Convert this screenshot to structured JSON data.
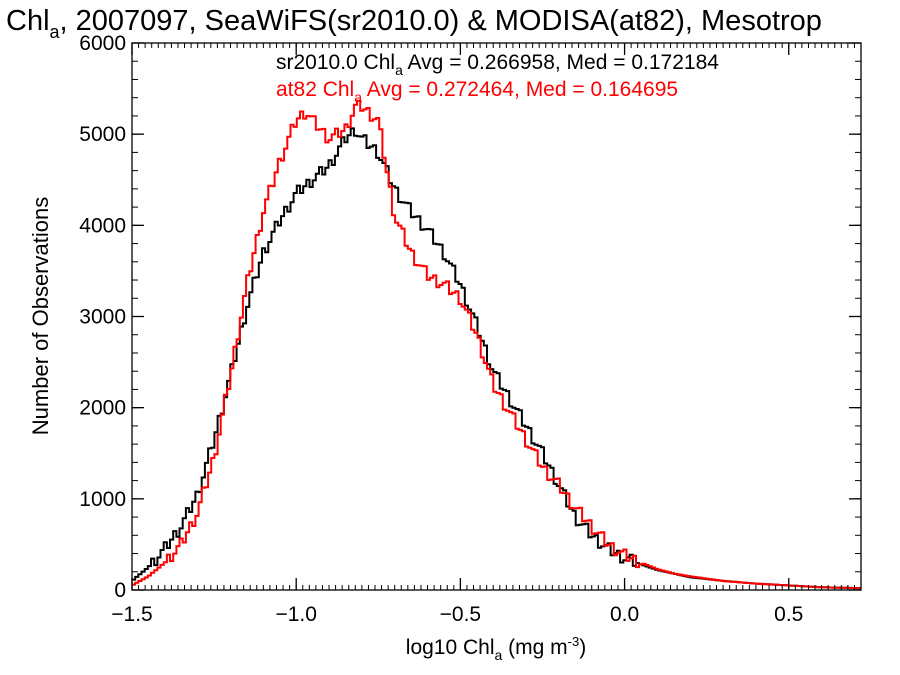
{
  "chart_data": {
    "type": "line",
    "title": {
      "main": "Chl",
      "sub": "a",
      "rest": ", 2007097, SeaWiFS(sr2010.0) & MODISA(at82), Mesotrop"
    },
    "xlabel": {
      "pre": "log10 Chl",
      "sub": "a",
      "mid": " (mg m",
      "sup": "-3",
      "post": ")"
    },
    "ylabel": "Number of Observations",
    "xlim": [
      -1.5,
      0.72
    ],
    "ylim": [
      0,
      6000
    ],
    "x_ticks": [
      -1.5,
      -1.0,
      -0.5,
      0.0,
      0.5
    ],
    "x_tick_labels": [
      "−1.5",
      "−1.0",
      "−0.5",
      "0.0",
      "0.5"
    ],
    "y_ticks": [
      0,
      1000,
      2000,
      3000,
      4000,
      5000,
      6000
    ],
    "y_tick_labels": [
      "0",
      "1000",
      "2000",
      "3000",
      "4000",
      "5000",
      "6000"
    ],
    "annotations": [
      {
        "pre": "sr2010.0 Chl",
        "sub": "a",
        "post": " Avg = 0.266958, Med = 0.172184",
        "color": "#000000"
      },
      {
        "pre": "at82 Chl",
        "sub": "a",
        "post": " Avg = 0.272464, Med = 0.164695",
        "color": "#ff0000"
      }
    ],
    "series": [
      {
        "name": "sr2010.0",
        "color": "#000000",
        "x": [
          -1.5,
          -1.45,
          -1.4,
          -1.35,
          -1.3,
          -1.25,
          -1.2,
          -1.15,
          -1.1,
          -1.05,
          -1.0,
          -0.95,
          -0.9,
          -0.85,
          -0.82,
          -0.8,
          -0.75,
          -0.7,
          -0.65,
          -0.6,
          -0.55,
          -0.5,
          -0.45,
          -0.4,
          -0.35,
          -0.3,
          -0.25,
          -0.2,
          -0.15,
          -0.1,
          -0.05,
          0.0,
          0.05,
          0.1,
          0.15,
          0.2,
          0.3,
          0.4,
          0.5,
          0.6,
          0.72
        ],
        "y": [
          100,
          250,
          450,
          700,
          1050,
          1650,
          2350,
          3100,
          3700,
          4050,
          4350,
          4500,
          4650,
          4950,
          5050,
          4950,
          4800,
          4400,
          4150,
          3950,
          3700,
          3350,
          2900,
          2400,
          2100,
          1800,
          1500,
          1150,
          800,
          600,
          450,
          350,
          280,
          220,
          180,
          140,
          100,
          70,
          50,
          30,
          20
        ]
      },
      {
        "name": "at82",
        "color": "#ff0000",
        "x": [
          -1.5,
          -1.45,
          -1.4,
          -1.35,
          -1.3,
          -1.25,
          -1.2,
          -1.15,
          -1.1,
          -1.05,
          -1.0,
          -0.97,
          -0.95,
          -0.9,
          -0.85,
          -0.82,
          -0.8,
          -0.75,
          -0.7,
          -0.65,
          -0.6,
          -0.55,
          -0.5,
          -0.45,
          -0.4,
          -0.35,
          -0.3,
          -0.25,
          -0.2,
          -0.15,
          -0.1,
          -0.05,
          0.0,
          0.05,
          0.1,
          0.15,
          0.2,
          0.3,
          0.4,
          0.5,
          0.6,
          0.72
        ],
        "y": [
          50,
          150,
          300,
          500,
          850,
          1450,
          2350,
          3350,
          4150,
          4700,
          5150,
          5250,
          5150,
          4950,
          5050,
          5300,
          5300,
          5150,
          4100,
          3700,
          3450,
          3350,
          3200,
          2800,
          2250,
          1950,
          1650,
          1350,
          1150,
          900,
          700,
          500,
          380,
          300,
          230,
          180,
          150,
          100,
          70,
          50,
          30,
          20
        ]
      }
    ]
  }
}
